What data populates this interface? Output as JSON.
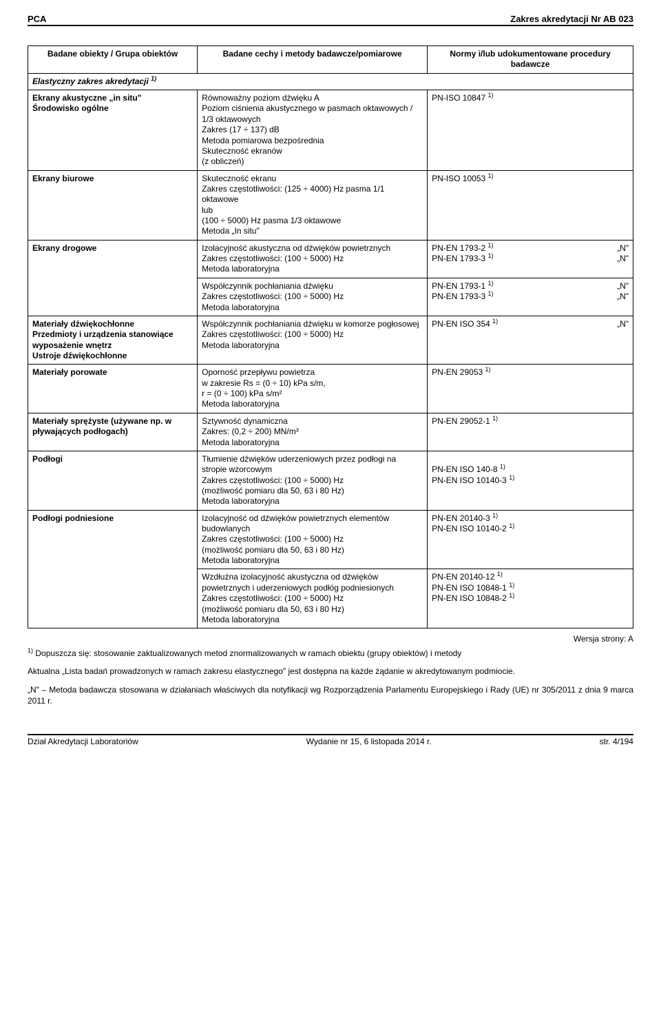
{
  "header": {
    "left": "PCA",
    "right": "Zakres akredytacji Nr AB 023"
  },
  "table": {
    "head": {
      "c1": "Badane obiekty / Grupa obiektów",
      "c2": "Badane cechy i metody badawcze/pomiarowe",
      "c3": "Normy i/lub udokumentowane procedury badawcze"
    },
    "elastic": "Elastyczny zakres akredytacji ",
    "rows": [
      {
        "obj": "Ekrany akustyczne „in situ\"\nŚrodowisko ogólne",
        "cell2": "Równoważny poziom dźwięku A\nPoziom ciśnienia akustycznego w pasmach oktawowych / 1/3 oktawowych\nZakres (17 ÷ 137) dB\nMetoda pomiarowa bezpośrednia\nSkuteczność ekranów\n(z obliczeń)",
        "normsHtml": "PN-ISO 10847 <sup>1)</sup>"
      },
      {
        "obj": "Ekrany biurowe",
        "cell2": "Skuteczność ekranu\nZakres częstotliwości: (125 ÷ 4000) Hz pasma 1/1 oktawowe\nlub\n(100 ÷ 5000) Hz pasma 1/3 oktawowe\nMetoda „In situ\"",
        "normsHtml": "PN-ISO 10053 <sup>1)</sup>"
      },
      {
        "obj": "Ekrany drogowe",
        "rowspan": 2,
        "cell2": "Izolacyjność akustyczna od dźwięków powietrznych\nZakres częstotliwości: (100 ÷ 5000) Hz\nMetoda laboratoryjna",
        "normsHtml": "PN-EN 1793-2 <sup>1)</sup><span class='n'>„N\"</span><br>PN-EN 1793-3 <sup>1)</sup><span class='n'>„N\"</span>"
      },
      {
        "continuation": true,
        "cell2": "Współczynnik pochłaniania dźwięku\nZakres częstotliwości: (100 ÷ 5000) Hz\nMetoda laboratoryjna",
        "normsHtml": "PN-EN 1793-1 <sup>1)</sup><span class='n'>„N\"</span><br>PN-EN 1793-3 <sup>1)</sup><span class='n'>„N\"</span>"
      },
      {
        "obj": "Materiały dźwiękochłonne\nPrzedmioty i urządzenia stanowiące wyposażenie wnętrz\nUstroje dźwiękochłonne",
        "cell2": "Współczynnik pochłaniania dźwięku w komorze pogłosowej\nZakres częstotliwości: (100 ÷ 5000) Hz\nMetoda laboratoryjna",
        "normsHtml": "PN-EN ISO 354 <sup>1)</sup><span class='n'>„N\"</span>"
      },
      {
        "obj": "Materiały porowate",
        "cell2": "Oporność przepływu powietrza\nw zakresie  Rs  = (0 ÷ 10) kPa s/m,\nr = (0 ÷ 100) kPa s/m²\nMetoda laboratoryjna",
        "normsHtml": "PN-EN 29053 <sup>1)</sup>"
      },
      {
        "obj": "Materiały sprężyste  (używane np. w pływających podłogach)",
        "cell2": "Sztywność dynamiczna\nZakres: (0,2 ÷ 200) MN/m³\nMetoda laboratoryjna",
        "normsHtml": "PN-EN 29052-1 <sup>1)</sup>"
      },
      {
        "obj": "Podłogi",
        "cell2": "Tłumienie dźwięków uderzeniowych przez podłogi na stropie wzorcowym\nZakres częstotliwości: (100 ÷ 5000) Hz\n(możliwość pomiaru dla 50, 63 i 80 Hz)\nMetoda laboratoryjna",
        "normsHtml": "<br>PN-EN ISO 140-8 <sup>1)</sup><br>PN-EN ISO 10140-3 <sup>1)</sup>"
      },
      {
        "obj": "Podłogi podniesione",
        "rowspan": 2,
        "cell2": "Izolacyjność od dźwięków powietrznych elementów budowlanych\nZakres częstotliwości: (100 ÷ 5000) Hz\n(możliwość pomiaru dla 50, 63 i 80 Hz)\nMetoda laboratoryjna",
        "normsHtml": "PN-EN 20140-3 <sup>1)</sup><br>PN-EN ISO 10140-2 <sup>1)</sup>"
      },
      {
        "continuation": true,
        "cell2": "Wzdłużna izolacyjność akustyczna od dźwięków powietrznych i uderzeniowych podłóg podniesionych\nZakres częstotliwości: (100 ÷ 5000) Hz\n(możliwość pomiaru dla 50, 63 i 80 Hz)\nMetoda laboratoryjna",
        "normsHtml": "PN-EN 20140-12 <sup>1)</sup><br>PN-EN ISO 10848-1 <sup>1)</sup><br>PN-EN ISO 10848-2 <sup>1)</sup>"
      }
    ]
  },
  "version": "Wersja strony: A",
  "footnotes": {
    "p1a": "1)",
    "p1b": " Dopuszcza się: stosowanie zaktualizowanych metod znormalizowanych w ramach obiektu (grupy obiektów) i metody",
    "p2": "Aktualna „Lista badań prowadzonych w ramach zakresu elastycznego\" jest dostępna na każde żądanie w akredytowanym podmiocie.",
    "p3": "„N\" – Metoda badawcza stosowana w działaniach właściwych dla notyfikacji wg Rozporządzenia Parlamentu Europejskiego i Rady (UE) nr 305/2011 z dnia 9 marca 2011 r."
  },
  "footer": {
    "left": "Dział Akredytacji Laboratoriów",
    "center": "Wydanie nr 15, 6 listopada 2014 r.",
    "right": "str. 4/194"
  }
}
